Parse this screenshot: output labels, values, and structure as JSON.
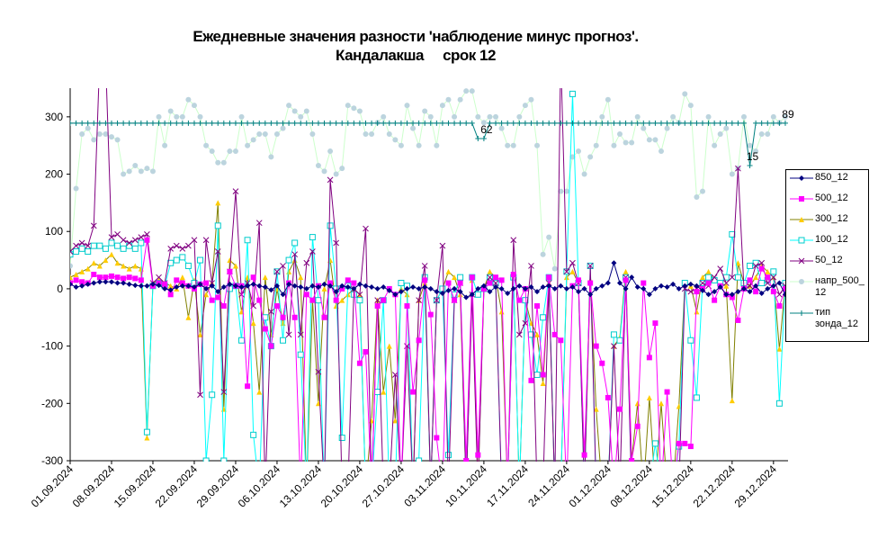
{
  "chart_data": {
    "type": "line",
    "title": "Ежедневные значения разности 'наблюдение минус прогноз'.",
    "subtitle": "Кандалакша     срок 12",
    "x": [
      "01.09.2024",
      "02.09.2024",
      "03.09.2024",
      "04.09.2024",
      "05.09.2024",
      "06.09.2024",
      "07.09.2024",
      "08.09.2024",
      "09.09.2024",
      "10.09.2024",
      "11.09.2024",
      "12.09.2024",
      "13.09.2024",
      "14.09.2024",
      "15.09.2024",
      "16.09.2024",
      "17.09.2024",
      "18.09.2024",
      "19.09.2024",
      "20.09.2024",
      "21.09.2024",
      "22.09.2024",
      "23.09.2024",
      "24.09.2024",
      "25.09.2024",
      "26.09.2024",
      "27.09.2024",
      "28.09.2024",
      "29.09.2024",
      "30.09.2024",
      "01.10.2024",
      "02.10.2024",
      "03.10.2024",
      "04.10.2024",
      "05.10.2024",
      "06.10.2024",
      "07.10.2024",
      "08.10.2024",
      "09.10.2024",
      "10.10.2024",
      "11.10.2024",
      "12.10.2024",
      "13.10.2024",
      "14.10.2024",
      "15.10.2024",
      "16.10.2024",
      "17.10.2024",
      "18.10.2024",
      "19.10.2024",
      "20.10.2024",
      "21.10.2024",
      "22.10.2024",
      "23.10.2024",
      "24.10.2024",
      "25.10.2024",
      "26.10.2024",
      "27.10.2024",
      "28.10.2024",
      "29.10.2024",
      "30.10.2024",
      "31.10.2024",
      "01.11.2024",
      "02.11.2024",
      "03.11.2024",
      "04.11.2024",
      "05.11.2024",
      "06.11.2024",
      "07.11.2024",
      "08.11.2024",
      "09.11.2024",
      "10.11.2024",
      "11.11.2024",
      "12.11.2024",
      "13.11.2024",
      "14.11.2024",
      "15.11.2024",
      "16.11.2024",
      "17.11.2024",
      "18.11.2024",
      "19.11.2024",
      "20.11.2024",
      "21.11.2024",
      "22.11.2024",
      "23.11.2024",
      "24.11.2024",
      "25.11.2024",
      "26.11.2024",
      "27.11.2024",
      "28.11.2024",
      "29.11.2024",
      "30.11.2024",
      "01.12.2024",
      "02.12.2024",
      "03.12.2024",
      "04.12.2024",
      "05.12.2024",
      "06.12.2024",
      "07.12.2024",
      "08.12.2024",
      "09.12.2024",
      "10.12.2024",
      "11.12.2024",
      "12.12.2024",
      "13.12.2024",
      "14.12.2024",
      "15.12.2024",
      "16.12.2024",
      "17.12.2024",
      "18.12.2024",
      "19.12.2024",
      "20.12.2024",
      "21.12.2024",
      "22.12.2024",
      "23.12.2024",
      "24.12.2024",
      "25.12.2024",
      "26.12.2024",
      "27.12.2024",
      "28.12.2024",
      "29.12.2024",
      "30.12.2024",
      "31.12.2024"
    ],
    "xticks": [
      "01.09.2024",
      "08.09.2024",
      "15.09.2024",
      "22.09.2024",
      "29.09.2024",
      "06.10.2024",
      "13.10.2024",
      "20.10.2024",
      "27.10.2024",
      "03.11.2024",
      "10.11.2024",
      "17.11.2024",
      "24.11.2024",
      "01.12.2024",
      "08.12.2024",
      "15.12.2024",
      "22.12.2024",
      "29.12.2024"
    ],
    "ylim": [
      -300,
      350
    ],
    "yticks": [
      -300,
      -200,
      -100,
      0,
      100,
      200,
      300
    ],
    "grid": false,
    "legend": "right",
    "series": [
      {
        "name": "850_12",
        "color": "#000080",
        "marker_color": "#000080",
        "marker": "diamond",
        "values": [
          8,
          3,
          5,
          8,
          10,
          12,
          12,
          12,
          10,
          10,
          8,
          6,
          5,
          5,
          8,
          6,
          0,
          -2,
          3,
          5,
          5,
          3,
          8,
          0,
          5,
          -5,
          3,
          8,
          5,
          3,
          5,
          8,
          5,
          3,
          -2,
          5,
          -10,
          8,
          5,
          3,
          0,
          5,
          3,
          8,
          5,
          -5,
          5,
          3,
          0,
          8,
          5,
          3,
          0,
          3,
          -3,
          -10,
          -5,
          0,
          3,
          0,
          3,
          0,
          -5,
          -8,
          -3,
          0,
          -5,
          -15,
          -10,
          0,
          5,
          -5,
          3,
          0,
          -8,
          0,
          5,
          0,
          3,
          -5,
          3,
          5,
          0,
          5,
          0,
          3,
          -5,
          0,
          -10,
          0,
          5,
          10,
          45,
          10,
          0,
          20,
          3,
          0,
          -10,
          0,
          5,
          3,
          8,
          0,
          5,
          8,
          5,
          -3,
          -10,
          -5,
          3,
          -10,
          -10,
          -5,
          0,
          -5,
          5,
          -8,
          0,
          5,
          10,
          -10
        ]
      },
      {
        "name": "500_12",
        "color": "#ff00ff",
        "marker_color": "#ff00ff",
        "marker": "square",
        "values": [
          10,
          15,
          12,
          10,
          25,
          20,
          20,
          22,
          20,
          18,
          20,
          18,
          15,
          85,
          5,
          10,
          8,
          -10,
          15,
          10,
          5,
          0,
          8,
          10,
          -20,
          -15,
          -30,
          30,
          5,
          5,
          -170,
          20,
          -20,
          -70,
          -100,
          -30,
          -50,
          10,
          -50,
          -350,
          -10,
          -20,
          5,
          -50,
          10,
          -20,
          0,
          15,
          10,
          -130,
          -110,
          -350,
          -30,
          -20,
          0,
          -10,
          -350,
          -30,
          -180,
          -90,
          15,
          -45,
          -260,
          -350,
          10,
          -20,
          10,
          -300,
          20,
          -290,
          0,
          10,
          20,
          15,
          -350,
          25,
          -20,
          0,
          -160,
          -30,
          -150,
          20,
          -80,
          -90,
          -350,
          5,
          15,
          -290,
          10,
          -100,
          -130,
          -190,
          -350,
          -210,
          15,
          -300,
          -240,
          10,
          -120,
          -60,
          -350,
          -180,
          -350,
          -270,
          -270,
          -275,
          -5,
          0,
          10,
          -20,
          5,
          -10,
          -15,
          -55,
          0,
          15,
          -5,
          35,
          20,
          -5,
          -30,
          0
        ]
      },
      {
        "name": "300_12",
        "color": "#808000",
        "marker_color": "#ffcc00",
        "marker": "triangle",
        "values": [
          20,
          25,
          30,
          35,
          45,
          40,
          50,
          60,
          45,
          40,
          35,
          40,
          35,
          -260,
          10,
          15,
          10,
          5,
          0,
          20,
          -50,
          15,
          -80,
          -10,
          10,
          150,
          -210,
          50,
          40,
          -40,
          20,
          -60,
          -180,
          20,
          -80,
          0,
          -60,
          30,
          50,
          20,
          -350,
          -20,
          -200,
          0,
          50,
          -30,
          -20,
          -10,
          0,
          -10,
          -350,
          -230,
          -20,
          -180,
          -100,
          -230,
          0,
          -10,
          -350,
          -20,
          10,
          -350,
          -20,
          0,
          30,
          20,
          -10,
          -350,
          15,
          -350,
          0,
          30,
          20,
          -40,
          -350,
          20,
          -350,
          -20,
          -60,
          -80,
          -165,
          10,
          -350,
          -350,
          20,
          30,
          10,
          -350,
          15,
          -210,
          -350,
          -350,
          -100,
          -85,
          30,
          -300,
          -200,
          -350,
          -190,
          -350,
          -200,
          -350,
          -350,
          -205,
          10,
          5,
          -40,
          20,
          30,
          15,
          10,
          5,
          -195,
          45,
          10,
          5,
          20,
          40,
          30,
          20,
          -105,
          10
        ]
      },
      {
        "name": "100_12",
        "color": "#00ffff",
        "marker_color": "#00cccc",
        "marker": "square-open",
        "values": [
          60,
          65,
          70,
          65,
          75,
          75,
          70,
          80,
          75,
          70,
          75,
          70,
          80,
          -250,
          5,
          10,
          5,
          45,
          50,
          55,
          40,
          10,
          50,
          -300,
          -185,
          110,
          -300,
          0,
          5,
          -90,
          85,
          -255,
          -350,
          -50,
          -100,
          30,
          -90,
          50,
          80,
          -115,
          -350,
          90,
          -20,
          -350,
          110,
          0,
          -260,
          5,
          -10,
          -20,
          -350,
          -350,
          -180,
          -20,
          -350,
          -350,
          10,
          5,
          -350,
          -300,
          20,
          -350,
          -20,
          0,
          -290,
          -10,
          20,
          -350,
          20,
          -10,
          0,
          20,
          10,
          -350,
          -350,
          20,
          -350,
          -20,
          -80,
          -150,
          -50,
          20,
          -350,
          -350,
          30,
          340,
          10,
          -350,
          40,
          -350,
          -350,
          -350,
          -80,
          -90,
          20,
          -350,
          -350,
          -350,
          -350,
          -270,
          -350,
          -350,
          -350,
          -275,
          10,
          -90,
          -190,
          10,
          20,
          15,
          10,
          20,
          95,
          20,
          10,
          40,
          45,
          10,
          15,
          30,
          -200,
          10
        ]
      },
      {
        "name": "50_12",
        "color": "#800080",
        "marker_color": "#800080",
        "marker": "x",
        "values": [
          65,
          75,
          80,
          75,
          110,
          400,
          400,
          90,
          95,
          85,
          80,
          85,
          90,
          95,
          10,
          20,
          10,
          70,
          75,
          70,
          75,
          85,
          -185,
          85,
          10,
          65,
          -180,
          30,
          170,
          -10,
          10,
          -30,
          115,
          -350,
          -40,
          30,
          40,
          -80,
          60,
          -80,
          45,
          65,
          -145,
          -350,
          190,
          80,
          -350,
          -350,
          0,
          -10,
          105,
          -350,
          -20,
          -350,
          -350,
          -150,
          -350,
          -100,
          -350,
          -20,
          40,
          -350,
          -20,
          75,
          -350,
          -20,
          10,
          -350,
          -10,
          -350,
          0,
          20,
          10,
          -350,
          -350,
          85,
          -80,
          -60,
          40,
          -350,
          -350,
          10,
          -350,
          410,
          30,
          45,
          10,
          -350,
          40,
          -350,
          -350,
          -350,
          -100,
          -350,
          20,
          -350,
          -350,
          -350,
          -350,
          -350,
          -350,
          -350,
          -350,
          -350,
          0,
          -5,
          0,
          10,
          5,
          20,
          35,
          10,
          20,
          210,
          0,
          5,
          40,
          45,
          10,
          20,
          -10,
          5
        ]
      },
      {
        "name": "напр_500_12",
        "color": "#ccffcc",
        "marker_color": "#bcd4de",
        "marker": "circle",
        "values": [
          40,
          175,
          270,
          280,
          260,
          270,
          270,
          265,
          260,
          200,
          205,
          215,
          205,
          210,
          205,
          300,
          250,
          310,
          300,
          300,
          330,
          320,
          300,
          250,
          240,
          220,
          220,
          240,
          240,
          300,
          250,
          260,
          270,
          270,
          230,
          270,
          280,
          320,
          310,
          300,
          310,
          270,
          215,
          205,
          240,
          200,
          210,
          320,
          315,
          310,
          270,
          270,
          290,
          300,
          270,
          260,
          250,
          320,
          280,
          250,
          310,
          300,
          250,
          320,
          330,
          300,
          330,
          345,
          345,
          300,
          290,
          300,
          300,
          280,
          250,
          250,
          300,
          320,
          330,
          250,
          60,
          90,
          35,
          170,
          170,
          230,
          240,
          200,
          230,
          250,
          300,
          330,
          250,
          270,
          255,
          255,
          300,
          280,
          260,
          260,
          240,
          280,
          300,
          290,
          340,
          320,
          160,
          170,
          300,
          250,
          270,
          280,
          200,
          210,
          300,
          250,
          240,
          270,
          270,
          300,
          290,
          300
        ]
      },
      {
        "name": "тип зонда_12",
        "color": "#008080",
        "marker_color": "#008080",
        "marker": "plus",
        "values": [
          289,
          289,
          289,
          289,
          289,
          289,
          289,
          289,
          289,
          289,
          289,
          289,
          289,
          289,
          289,
          289,
          289,
          289,
          289,
          289,
          289,
          289,
          289,
          289,
          289,
          289,
          289,
          289,
          289,
          289,
          289,
          289,
          289,
          289,
          289,
          289,
          289,
          289,
          289,
          289,
          289,
          289,
          289,
          289,
          289,
          289,
          289,
          289,
          289,
          289,
          289,
          289,
          289,
          289,
          289,
          289,
          289,
          289,
          289,
          289,
          289,
          289,
          289,
          289,
          289,
          289,
          289,
          289,
          289,
          262,
          262,
          289,
          289,
          289,
          289,
          289,
          289,
          289,
          289,
          289,
          289,
          289,
          289,
          289,
          289,
          289,
          289,
          289,
          289,
          289,
          289,
          289,
          289,
          289,
          289,
          289,
          289,
          289,
          289,
          289,
          289,
          289,
          289,
          289,
          289,
          289,
          289,
          289,
          289,
          289,
          289,
          289,
          289,
          289,
          289,
          215,
          289,
          289,
          289,
          289,
          289,
          289
        ]
      }
    ],
    "annotations": [
      {
        "text": "62",
        "x": "10.11.2024"
      },
      {
        "text": "15",
        "x": "25.12.2024"
      },
      {
        "text": "89",
        "x": "31.12.2024"
      }
    ]
  }
}
